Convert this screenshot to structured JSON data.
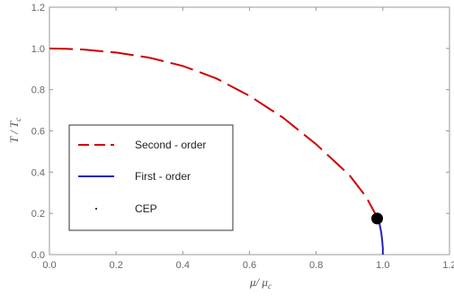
{
  "chart_data": {
    "type": "line",
    "xlabel": "μ/ μ",
    "xlabel_sub": "c",
    "ylabel": "T / T",
    "ylabel_sub": "c",
    "xlim": [
      0,
      1.2
    ],
    "ylim": [
      0,
      1.2
    ],
    "xticks": [
      "0.0",
      "0.2",
      "0.4",
      "0.6",
      "0.8",
      "1.0",
      "1.2"
    ],
    "yticks": [
      "0.0",
      "0.2",
      "0.4",
      "0.6",
      "0.8",
      "1.0",
      "1.2"
    ],
    "grid": false,
    "legend_position": "lower-left",
    "series": [
      {
        "name": "Second - order",
        "style": "dashed",
        "color": "#cc0000",
        "x": [
          0.0,
          0.05,
          0.1,
          0.2,
          0.3,
          0.4,
          0.5,
          0.6,
          0.7,
          0.8,
          0.9,
          0.95,
          0.98
        ],
        "y": [
          1.0,
          0.998,
          0.995,
          0.98,
          0.955,
          0.915,
          0.855,
          0.77,
          0.665,
          0.535,
          0.385,
          0.28,
          0.19
        ]
      },
      {
        "name": "First - order",
        "style": "solid",
        "color": "#2a1fbf",
        "x": [
          0.983,
          0.99,
          0.995,
          0.998,
          1.0,
          1.0
        ],
        "y": [
          0.175,
          0.15,
          0.11,
          0.07,
          0.03,
          0.0
        ]
      },
      {
        "name": "CEP",
        "style": "point",
        "color": "#000000",
        "x": [
          0.983
        ],
        "y": [
          0.175
        ]
      }
    ]
  }
}
